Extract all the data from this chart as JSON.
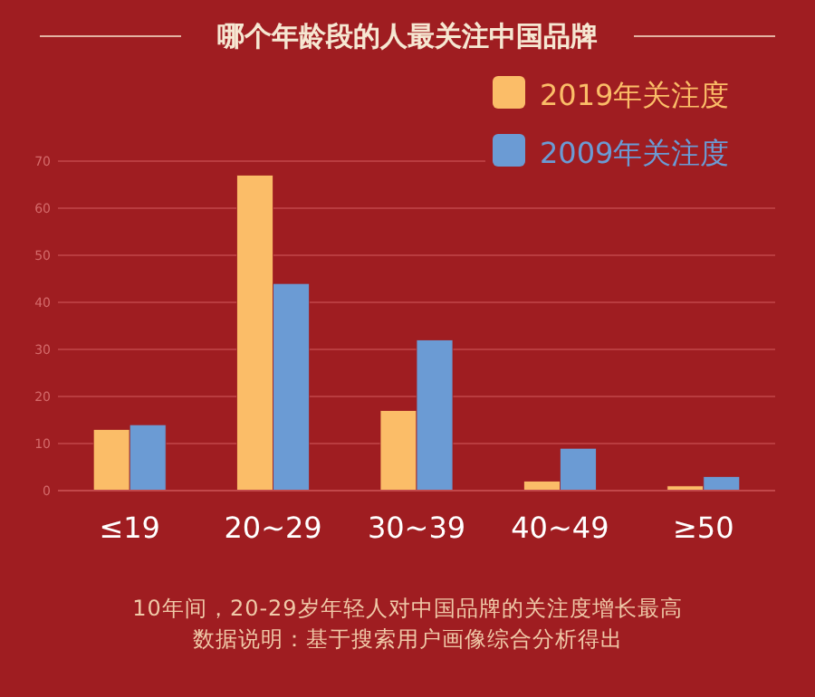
{
  "chart_data": {
    "type": "bar",
    "title": "哪个年龄段的人最关注中国品牌",
    "categories": [
      "≤19",
      "20~29",
      "30~39",
      "40~49",
      "≥50"
    ],
    "series": [
      {
        "name": "2019年关注度",
        "color": "#fbbd68",
        "values": [
          13,
          67,
          17,
          2,
          1
        ]
      },
      {
        "name": "2009年关注度",
        "color": "#6b9bd4",
        "values": [
          14,
          44,
          32,
          9,
          3
        ]
      }
    ],
    "ylim": [
      0,
      70
    ],
    "yticks": [
      0,
      10,
      20,
      30,
      40,
      50,
      60,
      70
    ],
    "grid": "y",
    "legend": "top right",
    "annotations": [
      "10年间，20-29岁年轻人对中国品牌的关注度增长最高",
      "数据说明：基于搜索用户画像综合分析得出"
    ]
  }
}
